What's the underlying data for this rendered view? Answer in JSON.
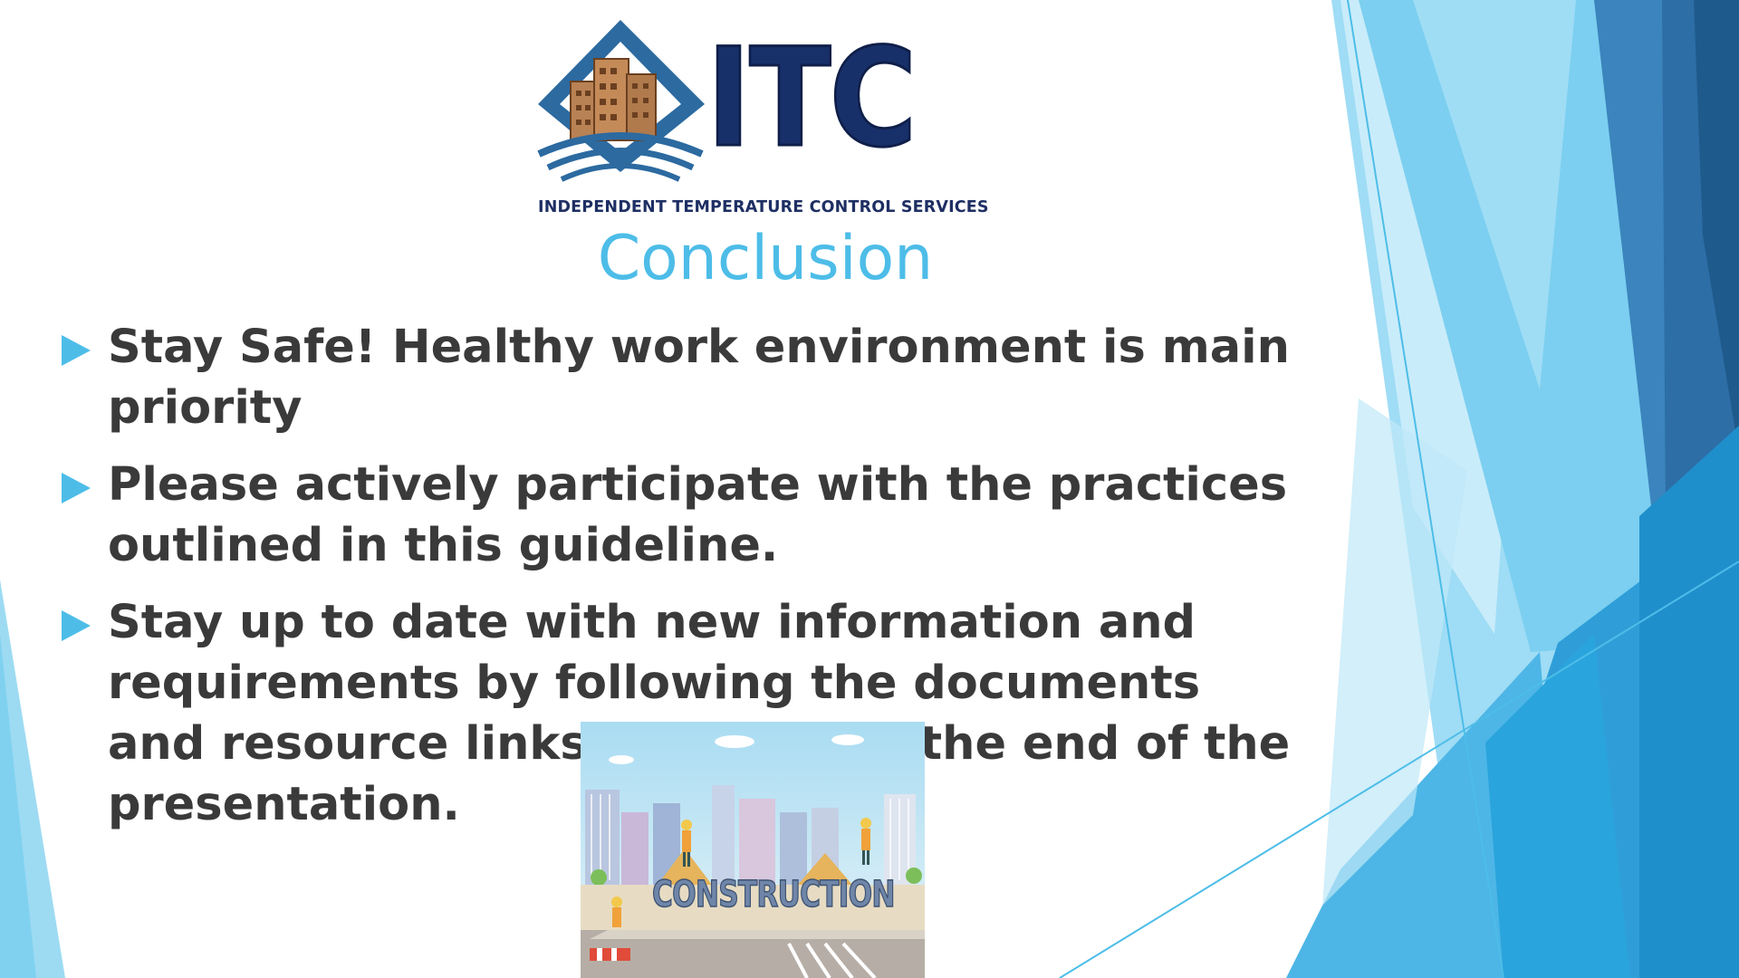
{
  "logo": {
    "wordmark": "ITC",
    "tagline": "INDEPENDENT TEMPERATURE CONTROL SERVICES"
  },
  "slide": {
    "title": "Conclusion",
    "bullets": [
      "Stay Safe! Healthy work environment is main priority",
      "Please actively participate with the practices outlined in this guideline.",
      "Stay up to date with new information and requirements by following the documents and resource links provided at the end of the presentation."
    ]
  },
  "illustration": {
    "label": "CONSTRUCTION",
    "icon": "construction-city-illustration"
  },
  "colors": {
    "title": "#4dbde8",
    "bullet_text": "#3a3a3a",
    "bullet_marker": "#4dbde8",
    "logo_navy": "#18306a",
    "accent_dark": "#2c6aa0",
    "accent_light": "#7ed0f0"
  }
}
